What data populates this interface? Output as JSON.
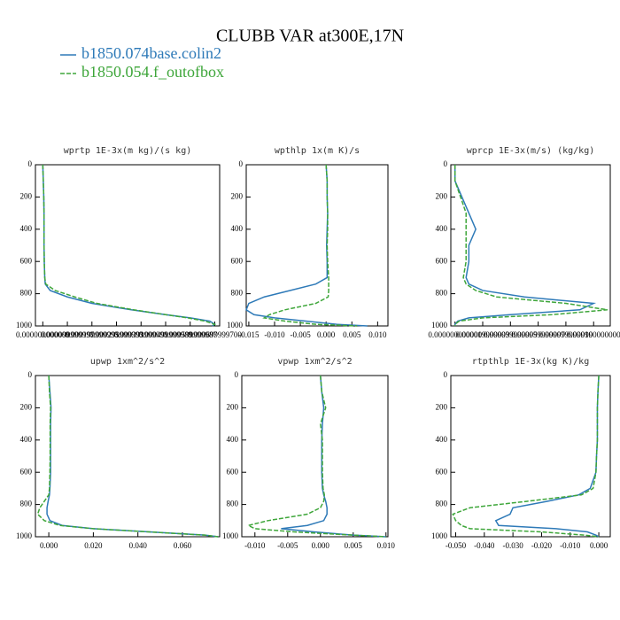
{
  "title": "CLUBB VAR at300E,17N",
  "legend": [
    {
      "name": "b1850.074base.colin2",
      "color": "#2e7ab8",
      "line_style": "solid"
    },
    {
      "name": "b1850.054.f_outofbox",
      "color": "#3ea63a",
      "line_style": "dashed"
    }
  ],
  "chart_data": [
    {
      "type": "line",
      "title": "wprtp  1E-3x(m kg)/(s kg)",
      "y": [
        0,
        100,
        200,
        300,
        400,
        500,
        600,
        700,
        740,
        780,
        820,
        860,
        900,
        930,
        950,
        970,
        990,
        1000
      ],
      "series": [
        {
          "values": [
            0,
            2e-06,
            4e-06,
            5e-06,
            5e-06,
            5e-06,
            6e-06,
            8e-06,
            1e-05,
            3e-05,
            0.0001,
            0.0002,
            0.00036,
            0.0005,
            0.0006,
            0.00068,
            0.0007,
            0.00069
          ]
        },
        {
          "values": [
            0,
            2e-06,
            4e-06,
            5e-06,
            5e-06,
            5e-06,
            6e-06,
            8e-06,
            1.2e-05,
            5e-05,
            0.00013,
            0.00022,
            0.00037,
            0.0005,
            0.00059,
            0.00066,
            0.0007,
            0.00069
          ]
        }
      ],
      "xlim": [
        -3e-05,
        0.00072
      ],
      "xticks": [
        {
          "value": 0,
          "label": "0.000000000000"
        },
        {
          "value": 0.0001,
          "label": "0.000099999997"
        },
        {
          "value": 0.0002,
          "label": "0.000199999995"
        },
        {
          "value": 0.0003,
          "label": "0.000299999993"
        },
        {
          "value": 0.0004,
          "label": "0.000399999991"
        },
        {
          "value": 0.0005,
          "label": "0.000499999989"
        },
        {
          "value": 0.0006,
          "label": "0.000599999987"
        },
        {
          "value": 0.0007,
          "label": "0.000699999700"
        }
      ],
      "ylim": [
        1000,
        0
      ],
      "yticks": [
        0,
        200,
        400,
        600,
        800,
        1000
      ]
    },
    {
      "type": "line",
      "title": "wpthlp  1x(m K)/s",
      "y": [
        0,
        100,
        200,
        300,
        400,
        500,
        600,
        700,
        740,
        780,
        820,
        860,
        900,
        930,
        950,
        970,
        990,
        1000
      ],
      "series": [
        {
          "values": [
            0,
            0.0002,
            0.0002,
            0.0003,
            0.0002,
            0.0001,
            0.0002,
            0.0002,
            -0.002,
            -0.007,
            -0.012,
            -0.015,
            -0.0155,
            -0.014,
            -0.01,
            -0.004,
            0.002,
            0.008
          ]
        },
        {
          "values": [
            0,
            0.0002,
            0.0002,
            0.0003,
            0.0003,
            0.0002,
            0.0003,
            0.0005,
            0.0005,
            0.0005,
            0.0004,
            -0.002,
            -0.008,
            -0.011,
            -0.012,
            -0.008,
            -0.002,
            0.006
          ]
        }
      ],
      "xlim": [
        -0.0155,
        0.012
      ],
      "xticks": [
        -0.015,
        {
          "value": -0.01,
          "label": "-0.010"
        },
        -0.005,
        {
          "value": 0,
          "label": "0.000"
        },
        0.005,
        {
          "value": 0.01,
          "label": "0.010"
        }
      ],
      "ylim": [
        1000,
        0
      ],
      "yticks": [
        0,
        200,
        400,
        600,
        800,
        1000
      ]
    },
    {
      "type": "line",
      "title": "wprcp  1E-3x(m/s) (kg/kg)",
      "y": [
        0,
        100,
        200,
        300,
        400,
        500,
        600,
        700,
        740,
        780,
        820,
        860,
        900,
        930,
        950,
        970,
        990,
        1000
      ],
      "series": [
        {
          "values": [
            0,
            0,
            5e-06,
            1e-05,
            1.5e-05,
            1e-05,
            1e-05,
            8e-06,
            1e-05,
            2e-05,
            5e-05,
            0.0001,
            9e-05,
            4e-05,
            1e-05,
            2e-06,
            0,
            0
          ]
        },
        {
          "values": [
            0,
            0,
            4e-06,
            8e-06,
            8e-06,
            8e-06,
            8e-06,
            6e-06,
            8e-06,
            1.5e-05,
            3e-05,
            8e-05,
            0.00011,
            7e-05,
            2e-05,
            3e-06,
            0,
            0
          ]
        }
      ],
      "xlim": [
        -3e-06,
        0.000112
      ],
      "xticks": [
        {
          "value": 0,
          "label": "0.000000000000"
        },
        {
          "value": 2e-05,
          "label": "0.000019999999"
        },
        {
          "value": 4e-05,
          "label": "0.000039999999"
        },
        {
          "value": 6e-05,
          "label": "0.000059999999"
        },
        {
          "value": 8e-05,
          "label": "0.000079999999"
        },
        {
          "value": 0.0001,
          "label": "0.000100000000"
        }
      ],
      "ylim": [
        1000,
        0
      ],
      "yticks": [
        0,
        200,
        400,
        600,
        800,
        1000
      ]
    },
    {
      "type": "line",
      "title": "upwp  1xm^2/s^2",
      "y": [
        0,
        100,
        200,
        300,
        400,
        500,
        600,
        700,
        740,
        780,
        820,
        860,
        900,
        930,
        950,
        970,
        990,
        1000
      ],
      "series": [
        {
          "values": [
            0,
            0.0005,
            0.001,
            0.0008,
            0.0008,
            0.0008,
            0.0008,
            0.0005,
            0.0003,
            -0.0003,
            -0.0008,
            -0.0008,
            0.0005,
            0.006,
            0.02,
            0.045,
            0.07,
            0.076
          ]
        },
        {
          "values": [
            0,
            0.0003,
            0.0008,
            0.0006,
            0.0006,
            0.0006,
            0.0005,
            0.0003,
            0,
            -0.002,
            -0.004,
            -0.005,
            -0.002,
            0.005,
            0.02,
            0.045,
            0.07,
            0.076
          ]
        }
      ],
      "xlim": [
        -0.006,
        0.0767
      ],
      "xticks": [
        {
          "value": 0,
          "label": "0.000"
        },
        {
          "value": 0.02,
          "label": "0.020"
        },
        {
          "value": 0.04,
          "label": "0.040"
        },
        {
          "value": 0.06,
          "label": "0.060"
        }
      ],
      "ylim": [
        1000,
        0
      ],
      "yticks": [
        0,
        200,
        400,
        600,
        800,
        1000
      ]
    },
    {
      "type": "line",
      "title": "vpwp  1xm^2/s^2",
      "y": [
        0,
        100,
        200,
        300,
        400,
        500,
        600,
        700,
        740,
        780,
        820,
        860,
        900,
        930,
        950,
        970,
        990,
        1000
      ],
      "series": [
        {
          "values": [
            0,
            0.0002,
            0.0005,
            0.0003,
            0.0002,
            0.0002,
            0.0002,
            0.0003,
            0.0005,
            0.0008,
            0.001,
            0.001,
            0.0005,
            -0.002,
            -0.006,
            -0.001,
            0.005,
            0.01
          ]
        },
        {
          "values": [
            0,
            0.0002,
            0.0008,
            0,
            0.0003,
            0.0003,
            0.0003,
            0.0004,
            0.0006,
            0.0005,
            0,
            -0.002,
            -0.008,
            -0.011,
            -0.01,
            -0.004,
            0.005,
            0.01
          ]
        }
      ],
      "xlim": [
        -0.012,
        0.0103
      ],
      "xticks": [
        {
          "value": -0.01,
          "label": "-0.010"
        },
        -0.005,
        {
          "value": 0,
          "label": "0.000"
        },
        0.005,
        {
          "value": 0.01,
          "label": "0.010"
        }
      ],
      "ylim": [
        1000,
        0
      ],
      "yticks": [
        0,
        200,
        400,
        600,
        800,
        1000
      ]
    },
    {
      "type": "line",
      "title": "rtpthlp  1E-3x(kg K)/kg",
      "y": [
        0,
        100,
        200,
        300,
        400,
        500,
        600,
        700,
        740,
        780,
        820,
        860,
        900,
        930,
        950,
        970,
        990,
        1000
      ],
      "series": [
        {
          "values": [
            0,
            -0.0003,
            -0.0005,
            -0.0005,
            -0.0005,
            -0.0008,
            -0.001,
            -0.003,
            -0.007,
            -0.018,
            -0.03,
            -0.031,
            -0.036,
            -0.035,
            -0.015,
            -0.004,
            -0.001,
            0
          ]
        },
        {
          "values": [
            0,
            -0.0003,
            -0.0005,
            -0.0005,
            -0.0005,
            -0.0008,
            -0.001,
            -0.002,
            -0.006,
            -0.025,
            -0.045,
            -0.051,
            -0.05,
            -0.048,
            -0.045,
            -0.02,
            -0.005,
            0
          ]
        }
      ],
      "xlim": [
        -0.0517,
        0.004
      ],
      "xticks": [
        {
          "value": -0.05,
          "label": "-0.050"
        },
        {
          "value": -0.04,
          "label": "-0.040"
        },
        {
          "value": -0.03,
          "label": "-0.030"
        },
        {
          "value": -0.02,
          "label": "-0.020"
        },
        {
          "value": -0.01,
          "label": "-0.010"
        },
        {
          "value": 0,
          "label": "0.000"
        }
      ],
      "ylim": [
        1000,
        0
      ],
      "yticks": [
        0,
        200,
        400,
        600,
        800,
        1000
      ]
    }
  ]
}
